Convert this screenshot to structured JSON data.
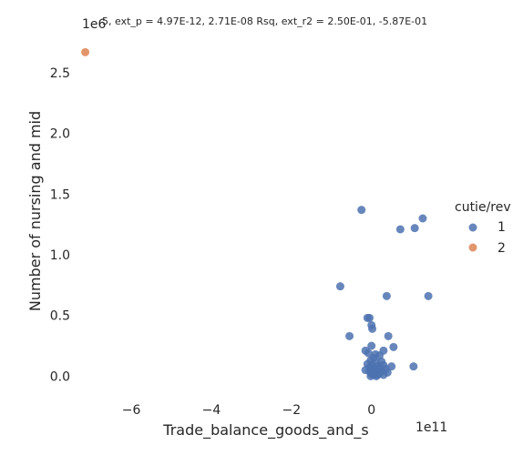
{
  "chart_data": {
    "type": "scatter",
    "title": "5, ext_p = 4.97E-12, 2.71E-08 Rsq, ext_r2 = 2.50E-01, -5.87E-01",
    "xlabel": "Trade_balance_goods_and_s",
    "ylabel": "Number of nursing and mid",
    "x_offset_label": "1e11",
    "y_offset_label": "1e6",
    "xlim": [
      -7.3,
      1.85
    ],
    "ylim": [
      -0.2,
      2.8
    ],
    "x_ticks": [
      -6,
      -4,
      -2,
      0
    ],
    "x_tick_labels": [
      "−6",
      "−4",
      "−2",
      "0"
    ],
    "y_ticks": [
      0.0,
      0.5,
      1.0,
      1.5,
      2.0,
      2.5
    ],
    "y_tick_labels": [
      "0.0",
      "0.5",
      "1.0",
      "1.5",
      "2.0",
      "2.5"
    ],
    "grid": false,
    "legend": {
      "title": "cutie/rev",
      "placement": "right",
      "entries": [
        {
          "label": "1",
          "color": "#4c72b0"
        },
        {
          "label": "2",
          "color": "#dd8452"
        }
      ]
    },
    "series": [
      {
        "name": "1",
        "color": "#4c72b0",
        "points": [
          [
            -0.25,
            1.37
          ],
          [
            0.72,
            1.21
          ],
          [
            1.08,
            1.22
          ],
          [
            1.28,
            1.3
          ],
          [
            -0.78,
            0.74
          ],
          [
            0.38,
            0.66
          ],
          [
            1.42,
            0.66
          ],
          [
            -0.1,
            0.48
          ],
          [
            -0.05,
            0.48
          ],
          [
            0.0,
            0.42
          ],
          [
            0.02,
            0.39
          ],
          [
            -0.55,
            0.33
          ],
          [
            0.42,
            0.33
          ],
          [
            0.0,
            0.25
          ],
          [
            0.55,
            0.24
          ],
          [
            -0.15,
            0.21
          ],
          [
            0.3,
            0.21
          ],
          [
            -0.08,
            0.19
          ],
          [
            0.1,
            0.18
          ],
          [
            0.2,
            0.17
          ],
          [
            0.05,
            0.15
          ],
          [
            -0.02,
            0.13
          ],
          [
            0.25,
            0.12
          ],
          [
            0.12,
            0.11
          ],
          [
            -0.1,
            0.1
          ],
          [
            0.3,
            0.09
          ],
          [
            0.0,
            0.09
          ],
          [
            0.15,
            0.08
          ],
          [
            0.5,
            0.08
          ],
          [
            1.05,
            0.08
          ],
          [
            -0.05,
            0.07
          ],
          [
            0.2,
            0.06
          ],
          [
            0.35,
            0.06
          ],
          [
            -0.15,
            0.05
          ],
          [
            0.08,
            0.05
          ],
          [
            0.25,
            0.04
          ],
          [
            -0.05,
            0.04
          ],
          [
            0.1,
            0.03
          ],
          [
            0.4,
            0.03
          ],
          [
            0.0,
            0.02
          ],
          [
            0.18,
            0.02
          ],
          [
            0.3,
            0.01
          ],
          [
            0.05,
            0.01
          ],
          [
            -0.02,
            0.0
          ],
          [
            0.12,
            0.0
          ],
          [
            0.22,
            0.03
          ],
          [
            0.15,
            0.01
          ],
          [
            0.02,
            0.06
          ]
        ]
      },
      {
        "name": "2",
        "color": "#dd8452",
        "points": [
          [
            -7.15,
            2.67
          ]
        ]
      }
    ]
  }
}
